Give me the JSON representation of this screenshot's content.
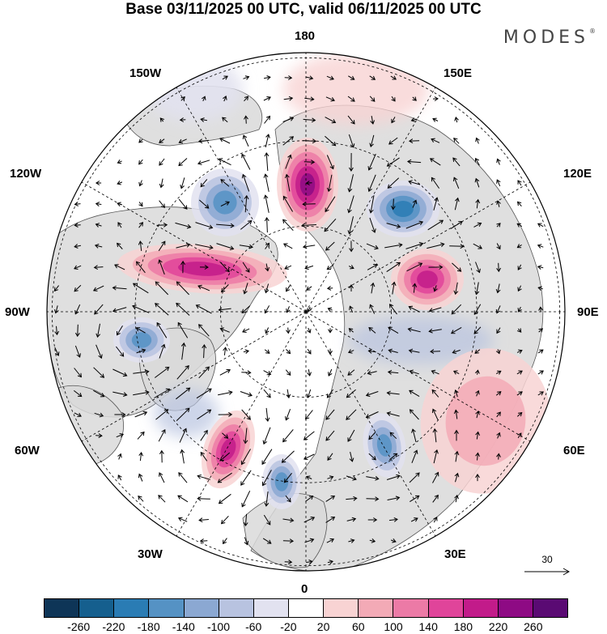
{
  "header": {
    "title": "Base 03/11/2025 00 UTC, valid 06/11/2025 00 UTC",
    "logo": "MODES"
  },
  "map": {
    "projection": "north-polar-stereographic",
    "longitude_labels": {
      "top": "180",
      "top_left": "150W",
      "top_right": "150E",
      "upper_left": "120W",
      "upper_right": "120E",
      "left": "90W",
      "right": "90E",
      "lower_left": "60W",
      "lower_right": "60E",
      "bottom_left": "30W",
      "bottom_right": "30E",
      "bottom": "0"
    },
    "colors": {
      "land": "#d9d9d9",
      "neutral": "#ffffff",
      "positive": "#e8408a",
      "negative": "#4f86b8"
    }
  },
  "anomalies": [
    {
      "region": "north-central-pacific",
      "sign": "positive",
      "peak": 220
    },
    {
      "region": "western-canada",
      "sign": "negative",
      "peak": -140
    },
    {
      "region": "eastern-pacific",
      "sign": "positive",
      "peak": 180
    },
    {
      "region": "hudson-bay",
      "sign": "negative",
      "peak": -140
    },
    {
      "region": "north-atlantic-west",
      "sign": "positive",
      "peak": 180
    },
    {
      "region": "north-atlantic-east",
      "sign": "negative",
      "peak": -140
    },
    {
      "region": "scandinavia",
      "sign": "negative",
      "peak": -140
    },
    {
      "region": "east-siberia",
      "sign": "negative",
      "peak": -180
    },
    {
      "region": "central-siberia",
      "sign": "positive",
      "peak": 180
    },
    {
      "region": "central-asia",
      "sign": "positive",
      "peak": 60
    }
  ],
  "colorbar": {
    "labels": [
      "-260",
      "-220",
      "-180",
      "-140",
      "-100",
      "-60",
      "-20",
      "20",
      "60",
      "100",
      "140",
      "180",
      "220",
      "260"
    ],
    "colors": [
      "#0e3557",
      "#155f8e",
      "#2a7cb4",
      "#5592c4",
      "#8ba8d2",
      "#b8c3e0",
      "#e2e2f0",
      "#ffffff",
      "#f8d3d3",
      "#f3aab6",
      "#ec7aa6",
      "#e0449a",
      "#c21b8a",
      "#8e0a84",
      "#5a0a73"
    ]
  },
  "reference_vector": {
    "label": "30"
  }
}
